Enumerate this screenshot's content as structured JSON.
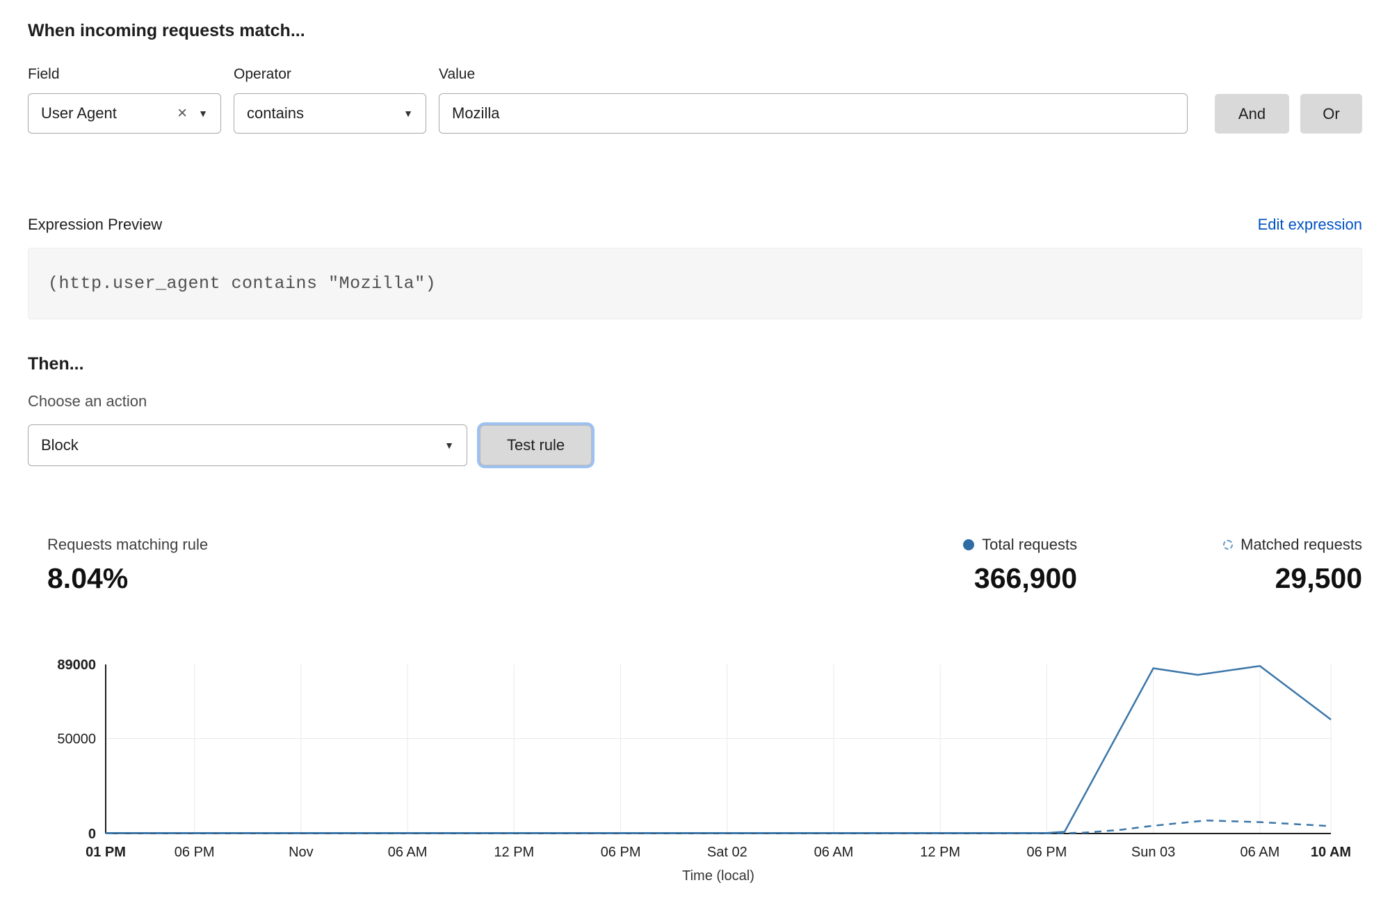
{
  "page": {
    "title": "When incoming requests match...",
    "then_title": "Then...",
    "choose_action_label": "Choose an action"
  },
  "icons": {
    "clear": "×",
    "chevron_down": "▼"
  },
  "rule_builder": {
    "field": {
      "label": "Field",
      "value": "User Agent"
    },
    "operator": {
      "label": "Operator",
      "value": "contains"
    },
    "value": {
      "label": "Value",
      "value": "Mozilla"
    },
    "and_label": "And",
    "or_label": "Or"
  },
  "expression": {
    "preview_label": "Expression Preview",
    "edit_link": "Edit expression",
    "code": "(http.user_agent contains \"Mozilla\")"
  },
  "action": {
    "selected": "Block",
    "test_button": "Test rule"
  },
  "stats": {
    "matching_label": "Requests matching rule",
    "matching_value": "8.04%",
    "total_label": "Total requests",
    "total_value": "366,900",
    "matched_label": "Matched requests",
    "matched_value": "29,500"
  },
  "colors": {
    "accent_blue": "#0051c3",
    "chart_blue": "#3b76a8",
    "button_gray": "#d9d9d9"
  },
  "chart_data": {
    "type": "line",
    "title": "",
    "xlabel": "Time (local)",
    "ylabel": "",
    "ylim": [
      0,
      89000
    ],
    "x_span_hours": 69,
    "grid": "on",
    "legend_position": "top-right",
    "yticks": [
      {
        "value": 0,
        "label": "0",
        "bold": true
      },
      {
        "value": 50000,
        "label": "50000",
        "bold": false
      },
      {
        "value": 89000,
        "label": "89000",
        "bold": true
      }
    ],
    "grid_y_values": [
      50000
    ],
    "xticks": [
      {
        "hour": 0,
        "label": "01 PM",
        "bold": true
      },
      {
        "hour": 5,
        "label": "06 PM",
        "bold": false
      },
      {
        "hour": 11,
        "label": "Nov",
        "bold": false
      },
      {
        "hour": 17,
        "label": "06 AM",
        "bold": false
      },
      {
        "hour": 23,
        "label": "12 PM",
        "bold": false
      },
      {
        "hour": 29,
        "label": "06 PM",
        "bold": false
      },
      {
        "hour": 35,
        "label": "Sat 02",
        "bold": false
      },
      {
        "hour": 41,
        "label": "06 AM",
        "bold": false
      },
      {
        "hour": 47,
        "label": "12 PM",
        "bold": false
      },
      {
        "hour": 53,
        "label": "06 PM",
        "bold": false
      },
      {
        "hour": 59,
        "label": "Sun 03",
        "bold": false
      },
      {
        "hour": 65,
        "label": "06 AM",
        "bold": false
      },
      {
        "hour": 69,
        "label": "10 AM",
        "bold": true
      }
    ],
    "series": [
      {
        "name": "Total requests",
        "line_style": "solid",
        "color": "#3b76a8",
        "points": [
          [
            0,
            300
          ],
          [
            5,
            300
          ],
          [
            11,
            300
          ],
          [
            17,
            300
          ],
          [
            23,
            300
          ],
          [
            29,
            300
          ],
          [
            35,
            300
          ],
          [
            41,
            300
          ],
          [
            47,
            300
          ],
          [
            53,
            300
          ],
          [
            54,
            900
          ],
          [
            59,
            87000
          ],
          [
            61.5,
            83500
          ],
          [
            65,
            88200
          ],
          [
            69,
            60000
          ]
        ]
      },
      {
        "name": "Matched requests",
        "line_style": "dashed",
        "color": "#3b76a8",
        "points": [
          [
            0,
            100
          ],
          [
            5,
            100
          ],
          [
            11,
            100
          ],
          [
            17,
            100
          ],
          [
            23,
            100
          ],
          [
            29,
            100
          ],
          [
            35,
            100
          ],
          [
            41,
            100
          ],
          [
            47,
            100
          ],
          [
            53,
            100
          ],
          [
            55,
            400
          ],
          [
            57,
            1800
          ],
          [
            59,
            4100
          ],
          [
            62,
            6900
          ],
          [
            65,
            6000
          ],
          [
            69,
            3900
          ]
        ]
      }
    ]
  }
}
